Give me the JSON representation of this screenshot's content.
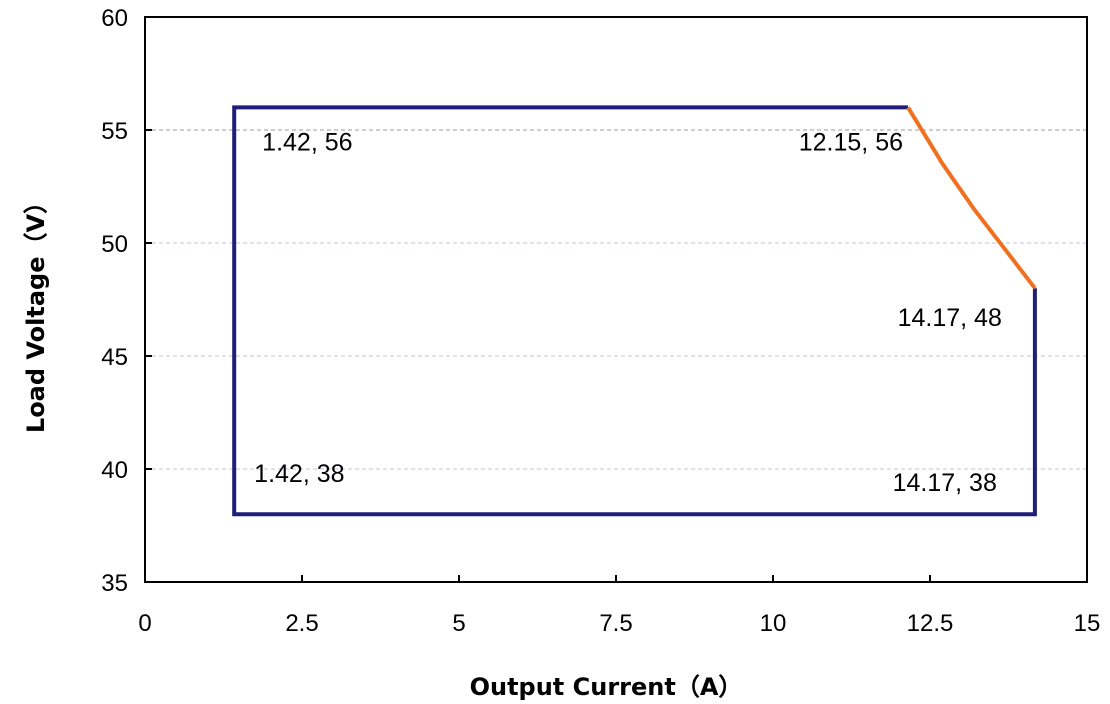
{
  "chart_data": {
    "type": "line",
    "xlabel": "Output Current（A）",
    "ylabel": "Load Voltage（V）",
    "xlim": [
      0,
      15
    ],
    "ylim": [
      35,
      60
    ],
    "x_ticks": [
      0,
      2.5,
      5,
      7.5,
      10,
      12.5,
      15
    ],
    "x_tick_labels": [
      "0",
      "2.5",
      "5",
      "7.5",
      "10",
      "12.5",
      "15"
    ],
    "y_ticks": [
      35,
      40,
      45,
      50,
      55,
      60
    ],
    "y_tick_labels": [
      "35",
      "40",
      "45",
      "50",
      "55",
      "60"
    ],
    "gridlines_y": [
      40,
      45,
      50,
      55
    ],
    "grid": true,
    "series": [
      {
        "color": "#1f1f7a",
        "points": [
          [
            12.15,
            56
          ],
          [
            1.42,
            56
          ],
          [
            1.42,
            38
          ],
          [
            14.17,
            38
          ],
          [
            14.17,
            48
          ]
        ]
      },
      {
        "color": "#f07020",
        "points": [
          [
            12.15,
            56
          ],
          [
            12.7,
            53.5
          ],
          [
            13.2,
            51.5
          ],
          [
            13.7,
            49.7
          ],
          [
            14.17,
            48
          ]
        ]
      }
    ],
    "annotations": [
      {
        "text": "1.42, 56",
        "anchor": [
          1.42,
          56
        ]
      },
      {
        "text": "12.15, 56",
        "anchor": [
          12.15,
          56
        ]
      },
      {
        "text": "14.17, 48",
        "anchor": [
          14.17,
          48
        ]
      },
      {
        "text": "1.42, 38",
        "anchor": [
          1.42,
          38
        ]
      },
      {
        "text": "14.17, 38",
        "anchor": [
          14.17,
          38
        ]
      }
    ]
  }
}
